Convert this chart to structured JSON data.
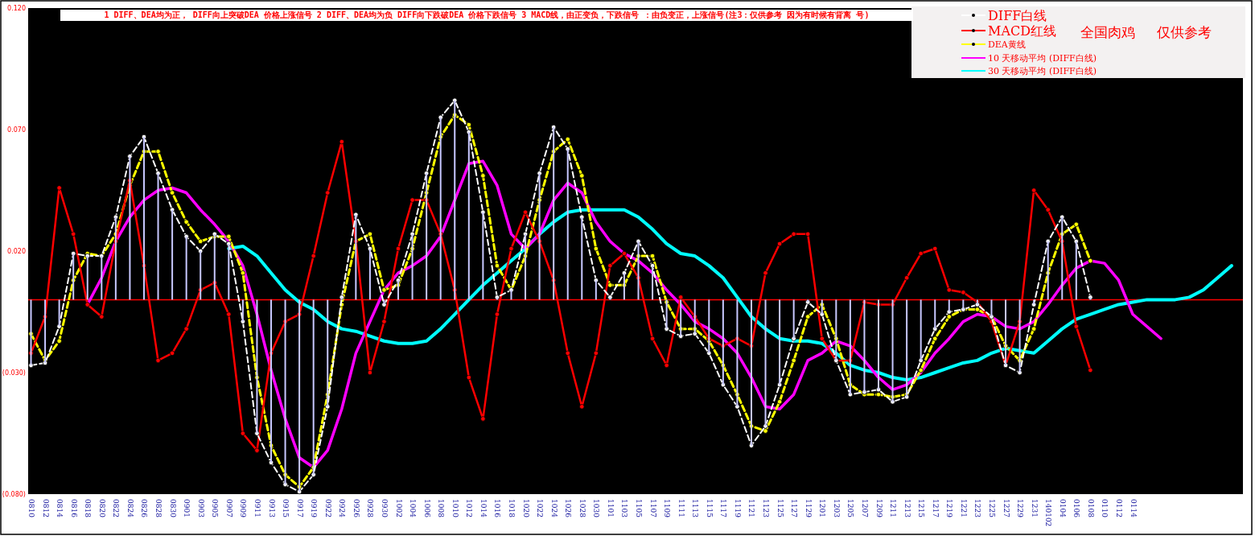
{
  "chart_data": {
    "type": "line",
    "title": "1 DIFF、DEA均为正， DIFF向上突破DEA 价格上涨信号 2 DIFF、DEA均为负 DIFF向下跌破DEA 价格下跌信号 3 MACD线，由正变负，下跌信号 ：由负变正，上涨信号(注3：仅供参考 因为有时候有背离 号)",
    "categories": [
      "0810",
      "0812",
      "0814",
      "0816",
      "0818",
      "0820",
      "0822",
      "0824",
      "0826",
      "0828",
      "0830",
      "0901",
      "0903",
      "0905",
      "0907",
      "0909",
      "0911",
      "0913",
      "0915",
      "0917",
      "0919",
      "0922",
      "0924",
      "0926",
      "0928",
      "0930",
      "1002",
      "1004",
      "1006",
      "1008",
      "1010",
      "1012",
      "1014",
      "1016",
      "1018",
      "1020",
      "1022",
      "1024",
      "1026",
      "1028",
      "1030",
      "1101",
      "1103",
      "1105",
      "1107",
      "1109",
      "1111",
      "1113",
      "1115",
      "1117",
      "1119",
      "1121",
      "1123",
      "1125",
      "1127",
      "1129",
      "1201",
      "1203",
      "1205",
      "1207",
      "1209",
      "1211",
      "1213",
      "1215",
      "1217",
      "1219",
      "1221",
      "1223",
      "1225",
      "1227",
      "1229",
      "1231",
      "140102",
      "0104",
      "0106",
      "0108",
      "0110",
      "0112",
      "0114",
      null,
      null,
      null,
      null,
      null,
      null,
      null
    ],
    "series": [
      {
        "type": "bar",
        "color": "#c8c8ff",
        "values": [
          -0.027,
          -0.026,
          -0.011,
          0.019,
          0.018,
          0.018,
          0.034,
          0.059,
          0.067,
          0.052,
          0.037,
          0.026,
          0.02,
          0.027,
          0.023,
          -0.009,
          -0.055,
          -0.067,
          -0.076,
          -0.079,
          -0.072,
          -0.044,
          0.001,
          0.035,
          0.021,
          -0.002,
          0.008,
          0.027,
          0.052,
          0.075,
          0.082,
          0.069,
          0.036,
          0.001,
          0.004,
          0.027,
          0.052,
          0.071,
          0.062,
          0.034,
          0.008,
          0.001,
          0.011,
          0.024,
          0.014,
          -0.012,
          -0.015,
          -0.014,
          -0.022,
          -0.035,
          -0.044,
          -0.06,
          -0.052,
          -0.035,
          -0.016,
          -0.001,
          -0.006,
          -0.025,
          -0.039,
          -0.038,
          -0.037,
          -0.042,
          -0.04,
          -0.025,
          -0.012,
          -0.005,
          -0.004,
          -0.002,
          -0.007,
          -0.027,
          -0.03,
          -0.002,
          0.024,
          0.034,
          0.024,
          0.001,
          null,
          null,
          null,
          null,
          null,
          null,
          null,
          null,
          null,
          null
        ]
      },
      {
        "name": "DIFF白线",
        "color": "#ffffff",
        "line_style": "dashed",
        "marker": "circle",
        "values": [
          -0.027,
          -0.026,
          -0.011,
          0.019,
          0.018,
          0.018,
          0.034,
          0.059,
          0.067,
          0.052,
          0.037,
          0.026,
          0.02,
          0.027,
          0.023,
          -0.009,
          -0.055,
          -0.067,
          -0.076,
          -0.079,
          -0.072,
          -0.044,
          0.001,
          0.035,
          0.021,
          -0.002,
          0.008,
          0.027,
          0.052,
          0.075,
          0.082,
          0.069,
          0.036,
          0.001,
          0.004,
          0.027,
          0.052,
          0.071,
          0.062,
          0.034,
          0.008,
          0.001,
          0.011,
          0.024,
          0.014,
          -0.012,
          -0.015,
          -0.014,
          -0.022,
          -0.035,
          -0.044,
          -0.06,
          -0.052,
          -0.035,
          -0.016,
          -0.001,
          -0.006,
          -0.025,
          -0.039,
          -0.038,
          -0.037,
          -0.042,
          -0.04,
          -0.025,
          -0.012,
          -0.005,
          -0.004,
          -0.002,
          -0.007,
          -0.027,
          -0.03,
          -0.002,
          0.024,
          0.034,
          0.024,
          0.001,
          null,
          null,
          null,
          null,
          null,
          null,
          null,
          null,
          null,
          null
        ]
      },
      {
        "name": "MACD红线",
        "color": "#ff0000",
        "line_style": "solid",
        "marker": "circle",
        "values": [
          -0.022,
          -0.007,
          0.046,
          0.027,
          -0.002,
          -0.007,
          0.024,
          0.049,
          0.014,
          -0.025,
          -0.022,
          -0.012,
          0.004,
          0.007,
          -0.006,
          -0.055,
          -0.062,
          -0.022,
          -0.009,
          -0.006,
          0.018,
          0.044,
          0.065,
          0.024,
          -0.03,
          -0.009,
          0.021,
          0.041,
          0.041,
          0.027,
          0.004,
          -0.032,
          -0.049,
          -0.006,
          0.021,
          0.036,
          0.024,
          0.008,
          -0.022,
          -0.044,
          -0.022,
          0.014,
          0.019,
          0.009,
          -0.016,
          -0.027,
          0.001,
          -0.007,
          -0.016,
          -0.019,
          -0.016,
          -0.019,
          0.011,
          0.023,
          0.027,
          0.027,
          -0.016,
          -0.025,
          -0.025,
          -0.001,
          -0.002,
          -0.002,
          0.009,
          0.019,
          0.021,
          0.004,
          0.003,
          -0.001,
          -0.009,
          -0.027,
          -0.009,
          0.045,
          0.037,
          0.024,
          -0.011,
          -0.029,
          null,
          null,
          null,
          null,
          null,
          null,
          null,
          null,
          null,
          null
        ]
      },
      {
        "name": "DEA黄线",
        "color": "#ffff00",
        "line_style": "dashed",
        "marker": "circle",
        "values": [
          -0.014,
          -0.025,
          -0.017,
          0.008,
          0.019,
          0.018,
          0.027,
          0.047,
          0.061,
          0.061,
          0.044,
          0.032,
          0.024,
          0.026,
          0.026,
          0.011,
          -0.032,
          -0.06,
          -0.072,
          -0.077,
          -0.069,
          -0.039,
          -0.002,
          0.024,
          0.027,
          0.004,
          0.006,
          0.021,
          0.044,
          0.067,
          0.076,
          0.072,
          0.051,
          0.014,
          0.004,
          0.018,
          0.041,
          0.061,
          0.066,
          0.051,
          0.021,
          0.006,
          0.006,
          0.018,
          0.018,
          -0.001,
          -0.012,
          -0.012,
          -0.017,
          -0.027,
          -0.039,
          -0.052,
          -0.054,
          -0.042,
          -0.025,
          -0.007,
          -0.002,
          -0.016,
          -0.035,
          -0.039,
          -0.039,
          -0.04,
          -0.039,
          -0.029,
          -0.016,
          -0.007,
          -0.004,
          -0.004,
          -0.007,
          -0.019,
          -0.025,
          -0.012,
          0.011,
          0.027,
          0.031,
          0.016,
          null,
          null,
          null,
          null,
          null,
          null,
          null,
          null,
          null,
          null
        ]
      },
      {
        "name": "10 天移动平均 (DIFF白线)",
        "color": "#ff00ff",
        "line_style": "solid",
        "values": [
          null,
          null,
          null,
          null,
          -0.002,
          0.009,
          0.024,
          0.034,
          0.041,
          0.045,
          0.046,
          0.044,
          0.037,
          0.031,
          0.024,
          0.014,
          -0.006,
          -0.029,
          -0.049,
          -0.065,
          -0.069,
          -0.062,
          -0.045,
          -0.022,
          -0.009,
          0.004,
          0.011,
          0.014,
          0.018,
          0.026,
          0.041,
          0.056,
          0.057,
          0.047,
          0.027,
          0.021,
          0.027,
          0.041,
          0.048,
          0.044,
          0.032,
          0.024,
          0.019,
          0.016,
          0.011,
          0.004,
          -0.002,
          -0.009,
          -0.012,
          -0.016,
          -0.022,
          -0.032,
          -0.044,
          -0.045,
          -0.039,
          -0.025,
          -0.022,
          -0.017,
          -0.019,
          -0.025,
          -0.032,
          -0.037,
          -0.035,
          -0.03,
          -0.022,
          -0.016,
          -0.009,
          -0.006,
          -0.007,
          -0.011,
          -0.012,
          -0.009,
          -0.002,
          0.006,
          0.013,
          0.016,
          0.015,
          0.008,
          -0.006,
          -0.011,
          -0.016,
          null,
          null,
          null,
          null,
          null
        ]
      },
      {
        "name": "30 天移动平均 (DIFF白线)",
        "color": "#00ffff",
        "line_style": "solid",
        "values": [
          null,
          null,
          null,
          null,
          null,
          null,
          null,
          null,
          null,
          null,
          null,
          null,
          null,
          null,
          0.021,
          0.022,
          0.018,
          0.011,
          0.004,
          -0.001,
          -0.004,
          -0.009,
          -0.012,
          -0.013,
          -0.015,
          -0.017,
          -0.018,
          -0.018,
          -0.017,
          -0.012,
          -0.006,
          0.0,
          0.006,
          0.011,
          0.016,
          0.021,
          0.027,
          0.032,
          0.036,
          0.037,
          0.037,
          0.037,
          0.037,
          0.034,
          0.029,
          0.023,
          0.019,
          0.018,
          0.014,
          0.009,
          0.001,
          -0.007,
          -0.012,
          -0.016,
          -0.017,
          -0.017,
          -0.018,
          -0.022,
          -0.027,
          -0.029,
          -0.03,
          -0.032,
          -0.033,
          -0.032,
          -0.03,
          -0.028,
          -0.026,
          -0.025,
          -0.022,
          -0.02,
          -0.021,
          -0.022,
          -0.017,
          -0.012,
          -0.008,
          -0.006,
          -0.004,
          -0.002,
          -0.001,
          0.0,
          0.0,
          0.0,
          0.001,
          0.004,
          0.009,
          0.014
        ]
      }
    ],
    "ylim": [
      -0.08,
      0.12
    ],
    "yticks": [
      {
        "value": -0.08,
        "label": "(0.080)"
      },
      {
        "value": -0.03,
        "label": "(0.030)"
      },
      {
        "value": 0.02,
        "label": "0.020"
      },
      {
        "value": 0.07,
        "label": "0.070"
      },
      {
        "value": 0.12,
        "label": "0.120"
      }
    ],
    "ref_lines": [
      {
        "axis": "y",
        "value": 0,
        "color": "#ff0000"
      }
    ],
    "annotations": [
      "全国肉鸡",
      "仅供参考"
    ],
    "legend": "top right"
  }
}
